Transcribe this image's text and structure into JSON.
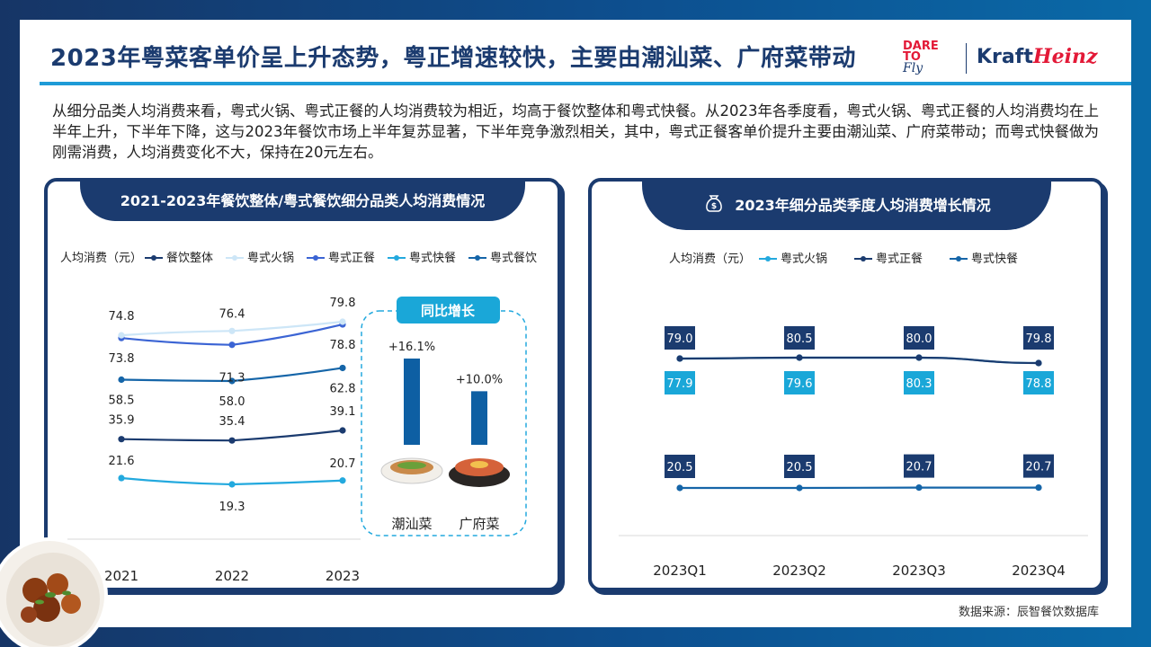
{
  "title": "2023年粤菜客单价呈上升态势，粤正增速较快，主要由潮汕菜、广府菜带动",
  "logo": {
    "dare_line1": "DARE",
    "dare_line2": "TO",
    "dare_fly": "Fly",
    "kraft": "Kraft",
    "heinz": "Heinz"
  },
  "summary": "从细分品类人均消费来看，粤式火锅、粤式正餐的人均消费较为相近，均高于餐饮整体和粤式快餐。从2023年各季度看，粤式火锅、粤式正餐的人均消费均在上半年上升，下半年下降，这与2023年餐饮市场上半年复苏显著，下半年竞争激烈相关，其中，粤式正餐客单价提升主要由潮汕菜、广府菜带动；而粤式快餐做为刚需消费，人均消费变化不大，保持在20元左右。",
  "source": "数据来源：辰智餐饮数据库",
  "colors": {
    "navy": "#1b3b6f",
    "accent": "#1e9bd7"
  },
  "left_panel": {
    "title": "2021-2023年餐饮整体/粤式餐饮细分品类人均消费情况",
    "yoy_title": "同比增长"
  },
  "right_panel": {
    "title": "2023年细分品类季度人均消费增长情况",
    "icon": "money-bag-icon"
  },
  "chart_data": [
    {
      "type": "line",
      "title": "2021-2023年餐饮整体/粤式餐饮细分品类人均消费情况",
      "ylabel": "人均消费（元）",
      "x": [
        "2021",
        "2022",
        "2023"
      ],
      "series": [
        {
          "name": "餐饮整体",
          "values": [
            35.9,
            35.4,
            39.1
          ],
          "color": "#1b3b6f"
        },
        {
          "name": "粤式火锅",
          "values": [
            74.8,
            76.4,
            79.8
          ],
          "color": "#cde6f7"
        },
        {
          "name": "粤式正餐",
          "values": [
            73.8,
            71.3,
            78.8
          ],
          "color": "#3b64d4"
        },
        {
          "name": "粤式快餐",
          "values": [
            21.6,
            19.3,
            20.7
          ],
          "color": "#23a9de"
        },
        {
          "name": "粤式餐饮",
          "values": [
            58.5,
            58.0,
            62.8
          ],
          "color": "#1565a8"
        }
      ],
      "legend": "top"
    },
    {
      "type": "bar",
      "title": "同比增长",
      "categories": [
        "潮汕菜",
        "广府菜"
      ],
      "values": [
        16.1,
        10.0
      ],
      "labels": [
        "+16.1%",
        "+10.0%"
      ],
      "color": "#0e5fa3"
    },
    {
      "type": "line",
      "title": "2023年细分品类季度人均消费增长情况",
      "ylabel": "人均消费（元）",
      "x": [
        "2023Q1",
        "2023Q2",
        "2023Q3",
        "2023Q4"
      ],
      "series": [
        {
          "name": "粤式火锅",
          "values": [
            77.9,
            79.6,
            80.3,
            78.8
          ],
          "color": "#23a9de"
        },
        {
          "name": "粤式正餐",
          "values": [
            79.0,
            80.5,
            80.0,
            79.8
          ],
          "color": "#1b3b6f"
        },
        {
          "name": "粤式快餐",
          "values": [
            20.5,
            20.5,
            20.7,
            20.7
          ],
          "color": "#1565a8"
        }
      ],
      "legend": "top"
    }
  ]
}
